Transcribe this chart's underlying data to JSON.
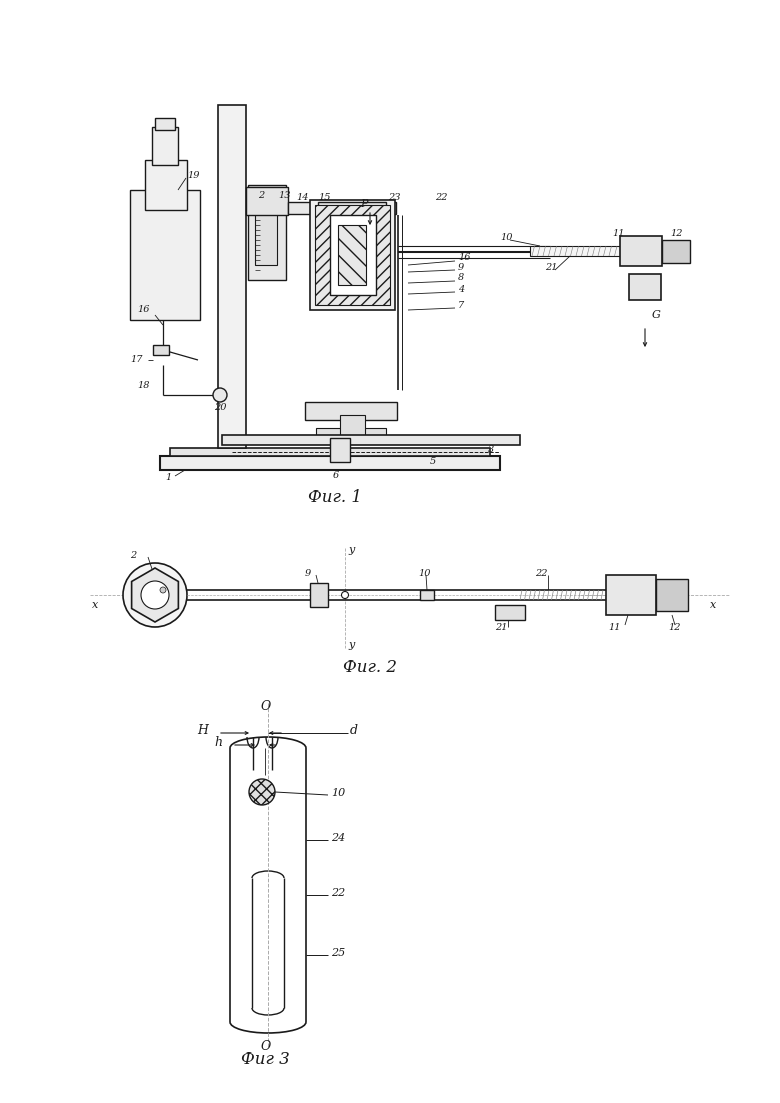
{
  "bg": "#ffffff",
  "lc": "#1a1a1a",
  "fig1_cap": "Фиг. 1",
  "fig2_cap": "Фиг. 2",
  "fig3_cap": "Фиг 3"
}
